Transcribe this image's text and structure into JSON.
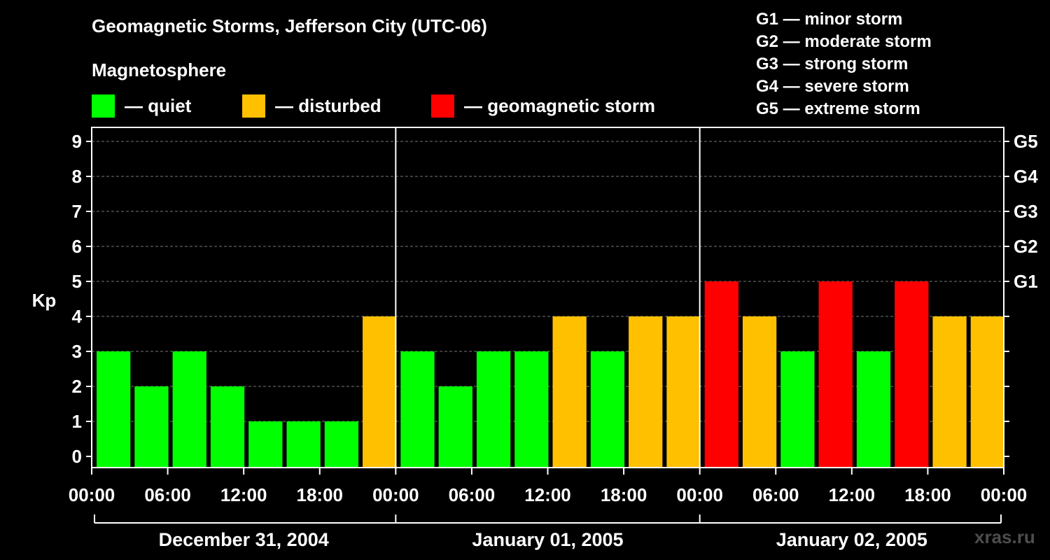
{
  "chart_data": {
    "type": "bar",
    "title": "Geomagnetic Storms, Jefferson City (UTC-06)",
    "subtitle": "Magnetosphere",
    "ylabel": "Kp",
    "ylim": [
      0,
      9
    ],
    "yticks": [
      "0",
      "1",
      "2",
      "3",
      "4",
      "5",
      "6",
      "7",
      "8",
      "9"
    ],
    "right_ticks": [
      {
        "kp": 5,
        "label": "G1"
      },
      {
        "kp": 6,
        "label": "G2"
      },
      {
        "kp": 7,
        "label": "G3"
      },
      {
        "kp": 8,
        "label": "G4"
      },
      {
        "kp": 9,
        "label": "G5"
      }
    ],
    "x_tick_labels": [
      "00:00",
      "06:00",
      "12:00",
      "18:00",
      "00:00",
      "06:00",
      "12:00",
      "18:00",
      "00:00",
      "06:00",
      "12:00",
      "18:00",
      "00:00"
    ],
    "days": [
      "December 31, 2004",
      "January 01, 2005",
      "January 02, 2005"
    ],
    "interval_hours": 3,
    "values": [
      3,
      2,
      3,
      2,
      1,
      1,
      1,
      4,
      3,
      2,
      3,
      3,
      4,
      3,
      4,
      4,
      5,
      4,
      3,
      5,
      3,
      5,
      4,
      4
    ],
    "legend": [
      {
        "label": "— quiet",
        "color": "#00ff00"
      },
      {
        "label": "— disturbed",
        "color": "#ffc000"
      },
      {
        "label": "— geomagnetic storm",
        "color": "#ff0000"
      }
    ],
    "storm_scale": [
      "G1 — minor storm",
      "G2 — moderate storm",
      "G3 — strong storm",
      "G4 — severe storm",
      "G5 — extreme storm"
    ],
    "grid": "dashed"
  },
  "colors": {
    "quiet": "#00ff00",
    "disturbed": "#ffc000",
    "storm": "#ff0000",
    "background": "#000000",
    "foreground": "#ffffff"
  },
  "watermark": "xras.ru"
}
